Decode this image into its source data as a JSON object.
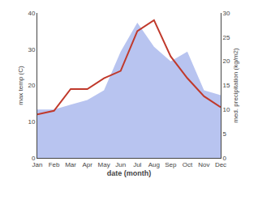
{
  "chart_data": {
    "type": "line",
    "categories": [
      "Jan",
      "Feb",
      "Mar",
      "Apr",
      "May",
      "Jun",
      "Jul",
      "Aug",
      "Sep",
      "Oct",
      "Nov",
      "Dec"
    ],
    "series": [
      {
        "type": "area",
        "axis": "y2",
        "color": "#b8c4f0",
        "values": [
          10,
          10,
          11,
          12,
          14,
          22,
          28,
          23,
          20,
          22,
          14,
          13
        ]
      },
      {
        "type": "line",
        "color": "#c0392b",
        "values": [
          12,
          13,
          19,
          19,
          22,
          24,
          35,
          38,
          28,
          22,
          17,
          14
        ]
      }
    ],
    "xlabel": "date (month)",
    "ylabel": "max temp (C)",
    "y2label": "med. precipitation (kg/m2)",
    "ylim": [
      0,
      40
    ],
    "yticks": [
      0,
      10,
      20,
      30,
      40
    ],
    "y2lim": [
      0,
      30
    ],
    "y2ticks": [
      0,
      5,
      10,
      15,
      20,
      25,
      30
    ],
    "grid": false
  }
}
